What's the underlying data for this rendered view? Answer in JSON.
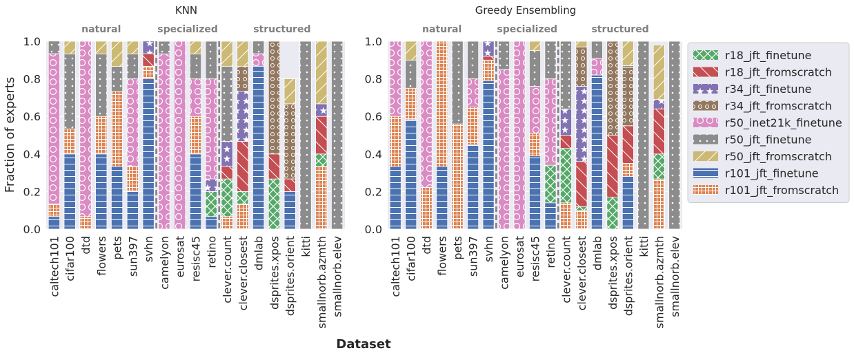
{
  "shared": {
    "ylabel": "Fraction of experts",
    "xlabel": "Dataset",
    "yticks": [
      "0.0",
      "0.2",
      "0.4",
      "0.6",
      "0.8",
      "1.0"
    ],
    "groups": [
      {
        "label": "natural",
        "from": 0,
        "to": 6
      },
      {
        "label": "specialized",
        "from": 7,
        "to": 10
      },
      {
        "label": "structured",
        "from": 11,
        "to": 18
      }
    ]
  },
  "legend": [
    {
      "key": "r18_jft_finetune",
      "label": "r18_jft_finetune",
      "color": "#55a868",
      "pattern": "xhatch"
    },
    {
      "key": "r18_jft_fromscratch",
      "label": "r18_jft_fromscratch",
      "color": "#c44e52",
      "pattern": "backslash"
    },
    {
      "key": "r34_jft_finetune",
      "label": "r34_jft_finetune",
      "color": "#8172b2",
      "pattern": "stars"
    },
    {
      "key": "r34_jft_fromscratch",
      "label": "r34_jft_fromscratch",
      "color": "#937860",
      "pattern": "circles"
    },
    {
      "key": "r50_inet21k_finetune",
      "label": "r50_inet21k_finetune",
      "color": "#da8bc3",
      "pattern": "bigcircles"
    },
    {
      "key": "r50_jft_finetune",
      "label": "r50_jft_finetune",
      "color": "#8c8c8c",
      "pattern": "dots"
    },
    {
      "key": "r50_jft_fromscratch",
      "label": "r50_jft_fromscratch",
      "color": "#ccb974",
      "pattern": "slash"
    },
    {
      "key": "r101_jft_finetune",
      "label": "r101_jft_finetune",
      "color": "#4c72b0",
      "pattern": "hlines"
    },
    {
      "key": "r101_jft_fromscratch",
      "label": "r101_jft_fromscratch",
      "color": "#dd8452",
      "pattern": "grid"
    }
  ],
  "chart_data": [
    {
      "type": "bar",
      "stacked": true,
      "title": "KNN",
      "xlabel": "Dataset",
      "ylabel": "Fraction of experts",
      "ylim": [
        0,
        1
      ],
      "categories": [
        "caltech101",
        "cifar100",
        "dtd",
        "flowers",
        "pets",
        "sun397",
        "svhn",
        "camelyon",
        "eurosat",
        "resisc45",
        "retino",
        "clever.count",
        "clever.closest",
        "dmlab",
        "dsprites.xpos",
        "dsprites.orient",
        "kitti",
        "smallnorb.azmth",
        "smallnorb.elev"
      ],
      "series": [
        {
          "name": "r101_jft_finetune",
          "values": [
            0.067,
            0.4,
            0,
            0.4,
            0.333,
            0.2,
            0.8,
            0,
            0,
            0.4,
            0.067,
            0,
            0,
            0.867,
            0,
            0.2,
            0,
            0,
            0
          ]
        },
        {
          "name": "r101_jft_fromscratch",
          "values": [
            0.067,
            0.133,
            0.067,
            0.2,
            0.4,
            0.133,
            0.067,
            0,
            0,
            0.2,
            0,
            0.067,
            0.133,
            0,
            0,
            0,
            0,
            0.333,
            0
          ]
        },
        {
          "name": "r18_jft_finetune",
          "values": [
            0,
            0,
            0,
            0,
            0,
            0,
            0,
            0,
            0,
            0,
            0.133,
            0.2,
            0.067,
            0,
            0.267,
            0,
            0,
            0.067,
            0
          ]
        },
        {
          "name": "r18_jft_fromscratch",
          "values": [
            0,
            0,
            0,
            0,
            0,
            0,
            0.067,
            0,
            0,
            0,
            0,
            0.067,
            0.267,
            0,
            0.133,
            0.067,
            0,
            0.2,
            0
          ]
        },
        {
          "name": "r34_jft_finetune",
          "values": [
            0,
            0,
            0,
            0,
            0,
            0,
            0.067,
            0,
            0,
            0,
            0.067,
            0.133,
            0.267,
            0,
            0,
            0,
            0,
            0.067,
            0
          ]
        },
        {
          "name": "r34_jft_fromscratch",
          "values": [
            0,
            0,
            0,
            0,
            0,
            0,
            0,
            0,
            0,
            0,
            0,
            0,
            0.133,
            0,
            0.6,
            0.4,
            0,
            0,
            0
          ]
        },
        {
          "name": "r50_inet21k_finetune",
          "values": [
            0.8,
            0,
            0.933,
            0,
            0,
            0.467,
            0,
            0.933,
            1.0,
            0.2,
            0.533,
            0,
            0,
            0.067,
            0,
            0,
            0,
            0,
            0
          ]
        },
        {
          "name": "r50_jft_finetune",
          "values": [
            0.067,
            0.4,
            0,
            0.333,
            0.133,
            0.133,
            0,
            0.067,
            0,
            0.133,
            0.2,
            0.4,
            0,
            0.067,
            0,
            0,
            1.0,
            0,
            1.0
          ]
        },
        {
          "name": "r50_jft_fromscratch",
          "values": [
            0,
            0.067,
            0,
            0.067,
            0.133,
            0.067,
            0,
            0,
            0,
            0.067,
            0,
            0.133,
            0.133,
            0,
            0,
            0.133,
            0,
            0.333,
            0
          ]
        }
      ]
    },
    {
      "type": "bar",
      "stacked": true,
      "title": "Greedy Ensembling",
      "xlabel": "Dataset",
      "ylabel": "Fraction of experts",
      "ylim": [
        0,
        1
      ],
      "categories": [
        "caltech101",
        "cifar100",
        "dtd",
        "flowers",
        "pets",
        "sun397",
        "svhn",
        "camelyon",
        "eurosat",
        "resisc45",
        "retino",
        "clever.count",
        "clever.closest",
        "dmlab",
        "dsprites.xpos",
        "dsprites.orient",
        "kitti",
        "smallnorb.azmth",
        "smallnorb.elev"
      ],
      "series": [
        {
          "name": "r101_jft_finetune",
          "values": [
            0.333,
            0.583,
            0,
            0.333,
            0,
            0.45,
            0.79,
            0,
            0,
            0.39,
            0.14,
            0,
            0,
            0.82,
            0,
            0.28,
            0,
            0,
            0
          ]
        },
        {
          "name": "r101_jft_fromscratch",
          "values": [
            0.267,
            0.167,
            0.222,
            0.667,
            0.56,
            0.2,
            0.11,
            0,
            0,
            0.12,
            0,
            0.14,
            0.1,
            0,
            0,
            0.07,
            0,
            0.267,
            0
          ]
        },
        {
          "name": "r18_jft_finetune",
          "values": [
            0,
            0,
            0,
            0,
            0,
            0,
            0,
            0,
            0,
            0,
            0.2,
            0.29,
            0.02,
            0,
            0.17,
            0,
            0,
            0.133,
            0
          ]
        },
        {
          "name": "r18_jft_fromscratch",
          "values": [
            0,
            0,
            0,
            0,
            0,
            0,
            0.02,
            0,
            0,
            0,
            0,
            0.07,
            0.24,
            0,
            0.33,
            0.2,
            0,
            0.24,
            0
          ]
        },
        {
          "name": "r34_jft_finetune",
          "values": [
            0,
            0,
            0,
            0,
            0,
            0,
            0.08,
            0,
            0,
            0,
            0,
            0.14,
            0.4,
            0,
            0,
            0,
            0,
            0.05,
            0
          ]
        },
        {
          "name": "r34_jft_fromscratch",
          "values": [
            0,
            0,
            0,
            0,
            0,
            0,
            0,
            0,
            0,
            0,
            0,
            0,
            0.21,
            0,
            0.5,
            0.31,
            0,
            0,
            0
          ]
        },
        {
          "name": "r50_inet21k_finetune",
          "values": [
            0.4,
            0,
            0.778,
            0,
            0,
            0.15,
            0,
            0.85,
            1.0,
            0.25,
            0.46,
            0,
            0,
            0.09,
            0,
            0,
            0,
            0,
            0
          ]
        },
        {
          "name": "r50_jft_finetune",
          "values": [
            0,
            0.15,
            0,
            0,
            0.44,
            0.2,
            0,
            0.15,
            0,
            0.19,
            0.2,
            0.36,
            0,
            0.09,
            0,
            0.01,
            1.0,
            0,
            1.0
          ]
        },
        {
          "name": "r50_jft_fromscratch",
          "values": [
            0,
            0.1,
            0,
            0,
            0,
            0,
            0,
            0,
            0,
            0.05,
            0,
            0,
            0.03,
            0,
            0,
            0.13,
            0,
            0.29,
            0
          ]
        }
      ]
    }
  ]
}
